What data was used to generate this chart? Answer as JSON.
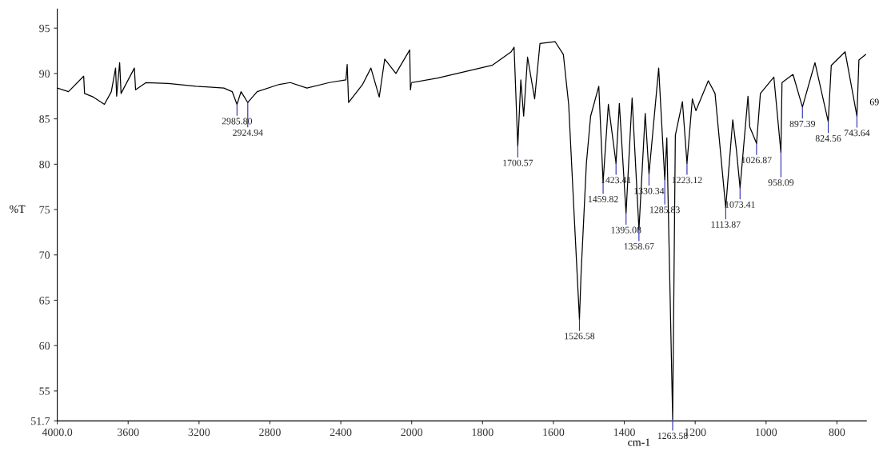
{
  "chart_data": [
    {
      "type": "line",
      "ylabel": "%T",
      "xlim": [
        4000,
        2000
      ],
      "ylim": [
        51.7,
        97.1
      ],
      "xticks": [
        {
          "value": 4000,
          "label": "4000.0"
        },
        3600,
        3200,
        2800,
        2400
      ],
      "yticks": [
        51.7,
        55,
        60,
        65,
        70,
        75,
        80,
        85,
        90,
        95
      ],
      "grid": false,
      "marker": "none",
      "line_style": "solid",
      "series": [
        {
          "color": "#000000",
          "x": [
            4000,
            3937,
            3851,
            3846,
            3796,
            3734,
            3695,
            3671,
            3665,
            3648,
            3640,
            3565,
            3558,
            3499,
            3374,
            3217,
            3060,
            3013,
            2985.8,
            2963,
            2924.94,
            2872,
            2747,
            2685,
            2591,
            2465,
            2371,
            2364,
            2356,
            2277,
            2230,
            2183,
            2152,
            2089,
            2011,
            2007,
            2000
          ],
          "values": [
            88.4,
            88.0,
            89.7,
            87.8,
            87.4,
            86.6,
            88.0,
            90.6,
            87.5,
            91.2,
            87.8,
            90.6,
            88.2,
            89.0,
            88.9,
            88.6,
            88.4,
            88.0,
            86.6,
            88.0,
            86.8,
            88.0,
            88.8,
            89.0,
            88.4,
            89.0,
            89.3,
            91.0,
            86.8,
            88.8,
            90.6,
            87.4,
            91.6,
            90.0,
            92.6,
            88.2,
            89.0
          ]
        }
      ],
      "annotations": [
        {
          "text": "2985.80",
          "x": 2985.8,
          "y": 86.6
        },
        {
          "text": "2924.94",
          "x": 2924.94,
          "y": 86.8
        }
      ]
    },
    {
      "type": "line",
      "xlabel": "cm-1",
      "xlim": [
        2000,
        717
      ],
      "ylim": [
        51.7,
        95
      ],
      "tick_labels": "x",
      "yticks": [
        51.7,
        55,
        60,
        65,
        70,
        75,
        80,
        85,
        90,
        95
      ],
      "xticks": [
        2000,
        1800,
        1600,
        1400,
        1200,
        1000,
        800
      ],
      "grid": false,
      "marker": "none",
      "line_style": "solid",
      "series": [
        {
          "color": "#000000",
          "x": [
            2000,
            1927,
            1850,
            1773,
            1719,
            1711,
            1700.57,
            1692,
            1684,
            1673,
            1653,
            1638,
            1595,
            1572,
            1557,
            1541,
            1526.58,
            1522,
            1507,
            1495,
            1472,
            1459.82,
            1445,
            1423.41,
            1414,
            1395.08,
            1378,
            1358.67,
            1341,
            1330.34,
            1303,
            1285.83,
            1280,
            1263.58,
            1256,
            1236,
            1223.12,
            1208,
            1198,
            1163,
            1144,
            1113.87,
            1094,
            1084,
            1073.41,
            1051,
            1046,
            1026.87,
            1016,
            978,
            958.09,
            955,
            924,
            897.39,
            862,
            824.56,
            816,
            777,
            743.64,
            738,
            719
          ],
          "values": [
            89.0,
            89.5,
            90.2,
            90.9,
            92.4,
            92.9,
            82.0,
            89.3,
            85.3,
            91.8,
            87.2,
            93.3,
            93.5,
            92.1,
            86.6,
            74.0,
            62.9,
            67.9,
            80.1,
            85.3,
            88.6,
            78.0,
            86.6,
            80.1,
            86.7,
            74.6,
            87.3,
            72.8,
            85.6,
            78.9,
            90.6,
            78.3,
            82.9,
            51.9,
            83.2,
            86.9,
            80.1,
            87.2,
            85.9,
            89.2,
            87.8,
            75.2,
            84.9,
            81.7,
            77.4,
            87.5,
            84.1,
            82.3,
            87.8,
            89.6,
            81.3,
            89.0,
            89.9,
            86.3,
            91.2,
            84.7,
            90.9,
            92.4,
            85.3,
            91.5,
            92.1
          ]
        }
      ],
      "annotations": [
        {
          "text": "1700.57",
          "x": 1700.57,
          "y": 82.0
        },
        {
          "text": "1526.58",
          "x": 1526.58,
          "y": 62.9
        },
        {
          "text": "1459.82",
          "x": 1459.82,
          "y": 78.0
        },
        {
          "text": "1423.41",
          "x": 1423.41,
          "y": 80.1
        },
        {
          "text": "1395.08",
          "x": 1395.08,
          "y": 74.6
        },
        {
          "text": "1358.67",
          "x": 1358.67,
          "y": 72.8
        },
        {
          "text": "1330.34",
          "x": 1330.34,
          "y": 78.9
        },
        {
          "text": "1285.83",
          "x": 1285.83,
          "y": 78.3
        },
        {
          "text": "1263.58",
          "x": 1263.58,
          "y": 51.9
        },
        {
          "text": "1223.12",
          "x": 1223.12,
          "y": 80.1
        },
        {
          "text": "1113.87",
          "x": 1113.87,
          "y": 75.2
        },
        {
          "text": "1073.41",
          "x": 1073.41,
          "y": 77.4
        },
        {
          "text": "1026.87",
          "x": 1026.87,
          "y": 82.3
        },
        {
          "text": "958.09",
          "x": 958.09,
          "y": 81.3
        },
        {
          "text": "897.39",
          "x": 897.39,
          "y": 86.3
        },
        {
          "text": "824.56",
          "x": 824.56,
          "y": 84.7
        },
        {
          "text": "743.64",
          "x": 743.64,
          "y": 85.3
        },
        "69"
      ]
    }
  ]
}
